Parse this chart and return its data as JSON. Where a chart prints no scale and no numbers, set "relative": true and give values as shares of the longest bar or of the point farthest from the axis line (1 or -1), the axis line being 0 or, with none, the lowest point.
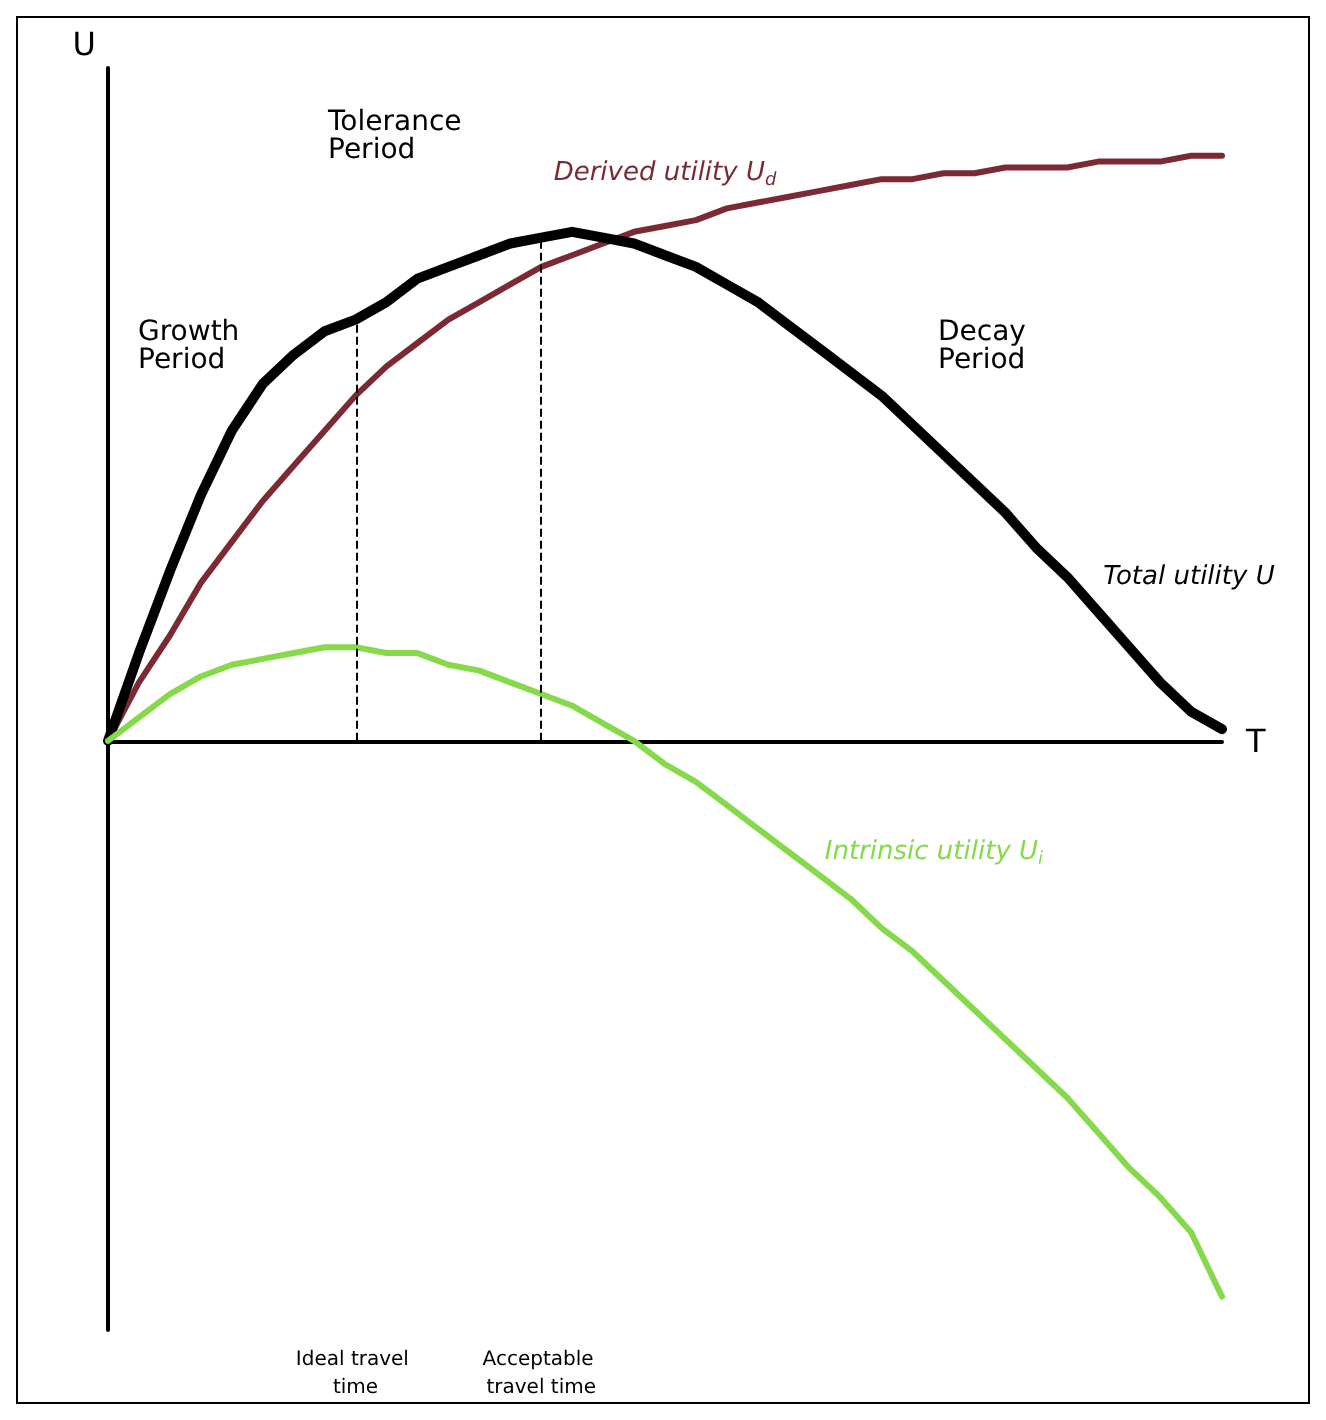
{
  "chart_data": {
    "type": "line",
    "relative": true,
    "xlabel": "T",
    "ylabel": "U",
    "marker": "none",
    "categories": [
      null,
      null,
      null,
      null,
      null,
      null,
      null,
      null,
      "Ideal travel time",
      null,
      null,
      null,
      null,
      null,
      "Acceptable travel time",
      null,
      null,
      null,
      null,
      null,
      null,
      null,
      null,
      null,
      null,
      null,
      null,
      null,
      null,
      null,
      null,
      null,
      null,
      null,
      null,
      null,
      null
    ],
    "series": [
      {
        "name": "Derived utility U$_{d}$",
        "color": "#7b2a35",
        "values": [
          0,
          0.1,
          0.18,
          0.27,
          0.34,
          0.41,
          0.47,
          0.53,
          0.59,
          0.64,
          0.68,
          0.72,
          0.75,
          0.78,
          0.81,
          0.83,
          0.85,
          0.87,
          0.88,
          0.89,
          0.91,
          0.92,
          0.93,
          0.94,
          0.95,
          0.96,
          0.96,
          0.97,
          0.97,
          0.98,
          0.98,
          0.98,
          0.99,
          0.99,
          0.99,
          1.0,
          1.0
        ]
      },
      {
        "name": "Total utility U",
        "color": "#000000",
        "values": [
          0,
          0.15,
          0.29,
          0.42,
          0.53,
          0.61,
          0.66,
          0.7,
          0.72,
          0.75,
          0.79,
          0.81,
          0.83,
          0.85,
          0.86,
          0.87,
          0.86,
          0.85,
          0.83,
          0.81,
          0.78,
          0.75,
          0.71,
          0.67,
          0.63,
          0.59,
          0.54,
          0.49,
          0.44,
          0.39,
          0.33,
          0.28,
          0.22,
          0.16,
          0.1,
          0.05,
          0.02
        ]
      },
      {
        "name": "Intrinsic utility U$_{i}$",
        "color": "#86d94a",
        "values": [
          0,
          0.04,
          0.08,
          0.11,
          0.13,
          0.14,
          0.15,
          0.16,
          0.16,
          0.15,
          0.15,
          0.13,
          0.12,
          0.1,
          0.08,
          0.06,
          0.03,
          0,
          -0.04,
          -0.07,
          -0.11,
          -0.15,
          -0.19,
          -0.23,
          -0.27,
          -0.32,
          -0.36,
          -0.41,
          -0.46,
          -0.51,
          -0.56,
          -0.61,
          -0.67,
          -0.73,
          -0.78,
          -0.84,
          -0.95
        ]
      }
    ],
    "ref_lines": [
      {
        "axis": "x",
        "value": "Ideal travel time",
        "color": "#000000",
        "line_style": "dashed"
      },
      {
        "axis": "x",
        "value": "Acceptable travel time",
        "color": "#000000",
        "line_style": "dashed"
      }
    ],
    "annotations": [
      "Growth Period",
      "Tolerance Period",
      "Decay Period"
    ]
  }
}
